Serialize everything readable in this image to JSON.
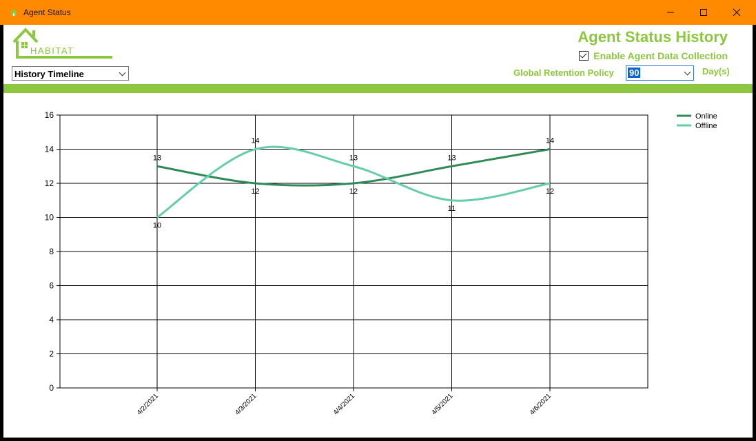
{
  "window": {
    "title": "Agent Status",
    "controls": {
      "minimize": "—",
      "maximize": "☐",
      "close": "✕"
    }
  },
  "logo": {
    "text": "HABITAT",
    "icon": "house-logo-icon"
  },
  "header": {
    "title": "Agent Status History",
    "enable_label": "Enable Agent Data Collection",
    "enable_checked": true
  },
  "view_select": {
    "value": "History Timeline"
  },
  "retention": {
    "label": "Global Retention Policy",
    "value": "90",
    "unit": "Day(s)"
  },
  "colors": {
    "titlebar": "#ff8a00",
    "accent": "#8dc63f",
    "online": "#2e8b57",
    "offline": "#66cdaa"
  },
  "chart_data": {
    "type": "line",
    "title": "",
    "xlabel": "",
    "ylabel": "",
    "categories": [
      "4/2/2021",
      "4/3/2021",
      "4/4/2021",
      "4/5/2021",
      "4/6/2021"
    ],
    "ylim": [
      0,
      16
    ],
    "yticks": [
      "0",
      "2",
      "4",
      "6",
      "8",
      "10",
      "12",
      "14",
      "16"
    ],
    "grid": true,
    "legend": "top-right",
    "series": [
      {
        "name": "Online",
        "values": [
          13,
          12,
          12,
          13,
          14
        ],
        "color": "#2e8b57"
      },
      {
        "name": "Offline",
        "values": [
          10,
          14,
          13,
          11,
          12
        ],
        "color": "#66cdaa"
      }
    ]
  }
}
